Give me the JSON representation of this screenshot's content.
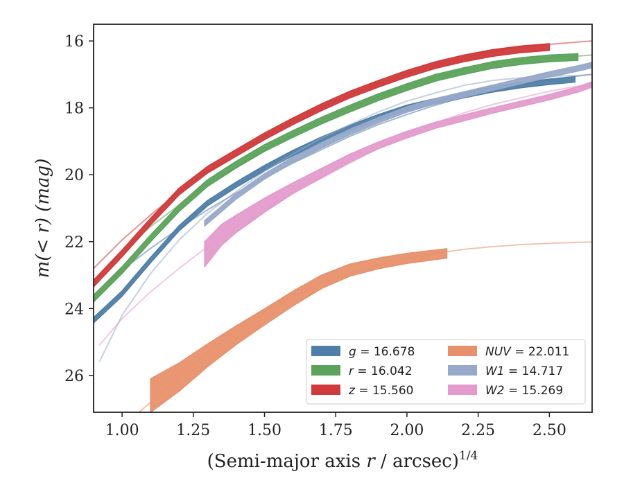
{
  "chart_data": {
    "type": "line",
    "title": "",
    "xlabel": {
      "main": "(Semi-major axis ",
      "var": "r",
      "tail": " / arcsec)",
      "sup": "1/4"
    },
    "ylabel": {
      "main": "m(< r) (mag)"
    },
    "xlim": [
      0.9,
      2.65
    ],
    "ylim": [
      27.1,
      15.5
    ],
    "y_inverted": true,
    "xticks": [
      1.0,
      1.25,
      1.5,
      1.75,
      2.0,
      2.25,
      2.5
    ],
    "xtick_labels": [
      "1.00",
      "1.25",
      "1.50",
      "1.75",
      "2.00",
      "2.25",
      "2.50"
    ],
    "yticks": [
      16,
      18,
      20,
      22,
      24,
      26
    ],
    "ytick_labels": [
      "16",
      "18",
      "20",
      "22",
      "24",
      "26"
    ],
    "grid": false,
    "legend_position": "lower-right",
    "series": [
      {
        "name": "g = 16.678",
        "var": "g",
        "value": "16.678",
        "color": "#4e7ea8",
        "model": {
          "x": [
            0.9,
            1.0,
            1.1,
            1.2,
            1.3,
            1.4,
            1.5,
            1.6,
            1.7,
            1.8,
            1.9,
            2.0,
            2.1,
            2.2,
            2.3,
            2.4,
            2.5,
            2.6,
            2.65
          ],
          "y": [
            23.6,
            22.85,
            22.2,
            21.6,
            21.05,
            20.55,
            20.1,
            19.65,
            19.25,
            18.85,
            18.5,
            18.2,
            17.92,
            17.68,
            17.48,
            17.3,
            17.15,
            17.05,
            17.0
          ]
        },
        "measured": {
          "x": [
            0.9,
            1.0,
            1.1,
            1.2,
            1.3,
            1.4,
            1.5,
            1.6,
            1.7,
            1.8,
            1.9,
            2.0,
            2.1,
            2.2,
            2.3,
            2.4,
            2.5,
            2.59
          ],
          "y": [
            24.35,
            23.55,
            22.55,
            21.6,
            20.85,
            20.3,
            19.8,
            19.35,
            18.95,
            18.6,
            18.28,
            18.0,
            17.8,
            17.62,
            17.45,
            17.32,
            17.22,
            17.15
          ],
          "band": 0.08
        }
      },
      {
        "name": "r = 16.042",
        "var": "r",
        "value": "16.042",
        "color": "#5ba35b",
        "model": {
          "x": [
            0.9,
            1.0,
            1.1,
            1.2,
            1.3,
            1.4,
            1.5,
            1.6,
            1.7,
            1.8,
            1.9,
            2.0,
            2.1,
            2.2,
            2.3,
            2.4,
            2.5,
            2.6,
            2.65
          ],
          "y": [
            23.2,
            22.3,
            21.55,
            20.9,
            20.3,
            19.75,
            19.25,
            18.8,
            18.38,
            18.0,
            17.65,
            17.35,
            17.08,
            16.87,
            16.7,
            16.58,
            16.5,
            16.45,
            16.42
          ]
        },
        "measured": {
          "x": [
            0.9,
            1.0,
            1.1,
            1.2,
            1.3,
            1.4,
            1.5,
            1.6,
            1.7,
            1.8,
            1.9,
            2.0,
            2.1,
            2.2,
            2.3,
            2.4,
            2.5,
            2.6
          ],
          "y": [
            23.7,
            22.85,
            21.9,
            21.0,
            20.25,
            19.7,
            19.2,
            18.78,
            18.38,
            18.02,
            17.68,
            17.38,
            17.1,
            16.9,
            16.72,
            16.6,
            16.52,
            16.48
          ],
          "band": 0.1
        }
      },
      {
        "name": "z = 15.560",
        "var": "z",
        "value": "15.560",
        "color": "#d03a3a",
        "model": {
          "x": [
            0.9,
            1.0,
            1.1,
            1.2,
            1.3,
            1.4,
            1.5,
            1.6,
            1.7,
            1.8,
            1.9,
            2.0,
            2.1,
            2.2,
            2.3,
            2.4,
            2.5,
            2.6,
            2.65
          ],
          "y": [
            22.8,
            21.95,
            21.2,
            20.5,
            19.9,
            19.35,
            18.85,
            18.4,
            17.98,
            17.6,
            17.28,
            16.98,
            16.72,
            16.5,
            16.32,
            16.18,
            16.1,
            16.03,
            16.0
          ]
        },
        "measured": {
          "x": [
            0.9,
            1.0,
            1.1,
            1.2,
            1.3,
            1.4,
            1.5,
            1.6,
            1.7,
            1.8,
            1.9,
            2.0,
            2.1,
            2.2,
            2.3,
            2.4,
            2.5
          ],
          "y": [
            23.25,
            22.35,
            21.4,
            20.5,
            19.85,
            19.35,
            18.85,
            18.4,
            17.98,
            17.6,
            17.28,
            16.98,
            16.72,
            16.52,
            16.36,
            16.25,
            16.18
          ],
          "band": 0.1
        }
      },
      {
        "name": "NUV = 22.011",
        "var": "NUV",
        "value": "22.011",
        "color": "#e8906c",
        "model": {
          "x": [
            1.06,
            1.1,
            1.2,
            1.3,
            1.4,
            1.5,
            1.6,
            1.7,
            1.8,
            1.9,
            2.0,
            2.1,
            2.2,
            2.3,
            2.4,
            2.5,
            2.6,
            2.65
          ],
          "y": [
            27.1,
            26.8,
            26.05,
            25.3,
            24.65,
            24.1,
            23.65,
            23.25,
            22.95,
            22.7,
            22.5,
            22.35,
            22.23,
            22.15,
            22.09,
            22.05,
            22.02,
            22.01
          ]
        },
        "measured": {
          "x": [
            1.1,
            1.2,
            1.3,
            1.4,
            1.5,
            1.6,
            1.7,
            1.8,
            1.9,
            2.0,
            2.14
          ],
          "y": [
            26.6,
            26.05,
            25.4,
            24.8,
            24.25,
            23.7,
            23.2,
            22.85,
            22.65,
            22.5,
            22.35
          ],
          "band_top": [
            0.5,
            0.42,
            0.34,
            0.28,
            0.24,
            0.22,
            0.2,
            0.18,
            0.16,
            0.15,
            0.14
          ],
          "band_bottom": [
            0.5,
            0.42,
            0.34,
            0.28,
            0.24,
            0.22,
            0.2,
            0.18,
            0.16,
            0.15,
            0.14
          ]
        }
      },
      {
        "name": "W1 = 14.717",
        "var": "W1",
        "value": "14.717",
        "color": "#97a9c9",
        "model": {
          "x": [
            0.92,
            1.0,
            1.1,
            1.2,
            1.3,
            1.4,
            1.5,
            1.6,
            1.7,
            1.8,
            1.9,
            2.0,
            2.1,
            2.2,
            2.3,
            2.4,
            2.5,
            2.6,
            2.65
          ],
          "y": [
            25.6,
            24.2,
            22.95,
            21.95,
            21.15,
            20.5,
            19.9,
            19.38,
            18.9,
            18.5,
            18.12,
            17.8,
            17.55,
            17.33,
            17.18,
            17.1,
            17.06,
            17.03,
            17.0
          ]
        },
        "measured": {
          "x": [
            1.29,
            1.4,
            1.5,
            1.6,
            1.7,
            1.8,
            1.9,
            2.0,
            2.1,
            2.2,
            2.3,
            2.4,
            2.5,
            2.6,
            2.65
          ],
          "y": [
            21.45,
            20.65,
            20.05,
            19.55,
            19.12,
            18.72,
            18.37,
            18.05,
            17.8,
            17.6,
            17.4,
            17.2,
            17.0,
            16.82,
            16.72
          ],
          "band": 0.08
        }
      },
      {
        "name": "W2 = 15.269",
        "var": "W2",
        "value": "15.269",
        "color": "#e39bcb",
        "model": {
          "x": [
            0.92,
            1.0,
            1.1,
            1.2,
            1.3,
            1.4,
            1.5,
            1.6,
            1.7,
            1.8,
            1.9,
            2.0,
            2.1,
            2.2,
            2.3,
            2.4,
            2.5,
            2.6,
            2.65
          ],
          "y": [
            25.1,
            24.3,
            23.5,
            22.8,
            22.15,
            21.6,
            21.05,
            20.55,
            20.1,
            19.65,
            19.2,
            18.8,
            18.45,
            18.15,
            17.9,
            17.7,
            17.5,
            17.35,
            17.3
          ]
        },
        "measured": {
          "x": [
            1.29,
            1.35,
            1.4,
            1.5,
            1.6,
            1.7,
            1.8,
            1.9,
            2.0,
            2.1,
            2.2,
            2.3,
            2.4,
            2.5,
            2.6,
            2.65
          ],
          "y": [
            22.3,
            21.75,
            21.45,
            20.9,
            20.4,
            19.95,
            19.5,
            19.12,
            18.8,
            18.52,
            18.3,
            18.08,
            17.88,
            17.68,
            17.45,
            17.3
          ],
          "band_top": [
            0.3,
            0.27,
            0.24,
            0.2,
            0.16,
            0.14,
            0.12,
            0.1,
            0.1,
            0.09,
            0.09,
            0.08,
            0.08,
            0.08,
            0.08,
            0.08
          ],
          "band_bottom": [
            0.45,
            0.35,
            0.28,
            0.22,
            0.16,
            0.14,
            0.12,
            0.1,
            0.1,
            0.09,
            0.09,
            0.08,
            0.08,
            0.08,
            0.08,
            0.08
          ]
        }
      }
    ]
  }
}
